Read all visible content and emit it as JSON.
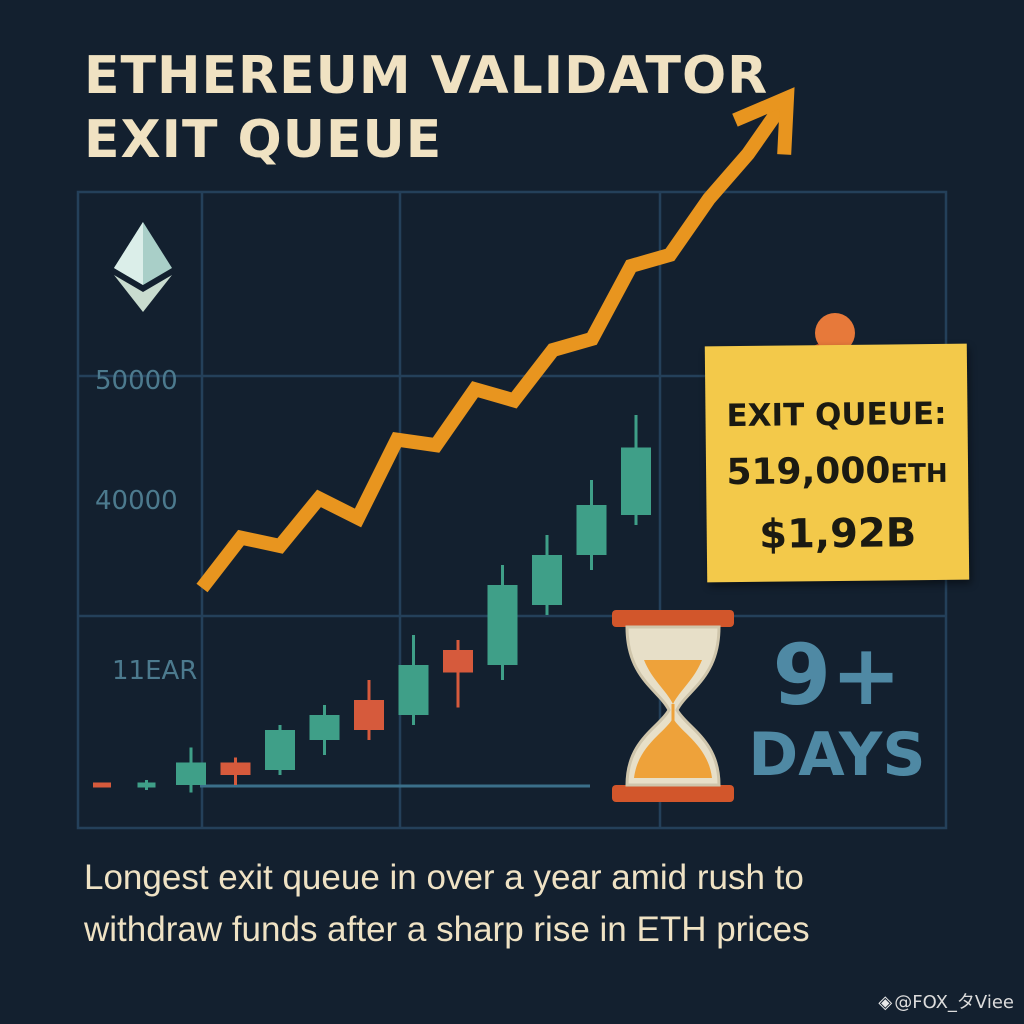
{
  "title_lines": [
    "ETHEREUM VALIDATOR",
    "EXIT QUEUE"
  ],
  "note": {
    "line1": "EXIT QUEUE:",
    "amount": "519,000",
    "unit": "ETH",
    "value": "$1,92B"
  },
  "days": {
    "number": "9+",
    "label": "DAYS"
  },
  "caption_lines": [
    "Longest exit queue in over a year amid rush to",
    "withdraw funds after a sharp rise in ETH prices"
  ],
  "watermark": "@FOX_タViee",
  "colors": {
    "background": "#13202f",
    "grid": "#24405a",
    "trend": "#e8951f",
    "candle_up": "#3f9f88",
    "candle_down": "#d65a3c",
    "note": "#f3c94a",
    "days_text": "#4f89a4"
  },
  "icons": [
    "ethereum-logo-icon",
    "hourglass-icon",
    "pushpin-icon",
    "binance-logo-icon"
  ],
  "chart_data": {
    "type": "line",
    "y_tick_labels": [
      "50000",
      "40000",
      "11EAR"
    ],
    "trend_line": [
      {
        "x": 0,
        "y": 15.0
      },
      {
        "x": 1,
        "y": 33.0
      },
      {
        "x": 2,
        "y": 30.0
      },
      {
        "x": 3,
        "y": 47.0
      },
      {
        "x": 4,
        "y": 40.0
      },
      {
        "x": 5,
        "y": 68.0
      },
      {
        "x": 6,
        "y": 66.0
      },
      {
        "x": 7,
        "y": 86.0
      },
      {
        "x": 8,
        "y": 82.0
      },
      {
        "x": 9,
        "y": 100.0
      },
      {
        "x": 10,
        "y": 104.0
      },
      {
        "x": 11,
        "y": 130.0
      },
      {
        "x": 12,
        "y": 134.0
      },
      {
        "x": 13,
        "y": 154.0
      },
      {
        "x": 14,
        "y": 170.0
      },
      {
        "x": 15,
        "y": 190.0
      }
    ],
    "candles": [
      {
        "x": 0,
        "open": 2.5,
        "close": 3.5,
        "high": 3.5,
        "low": 2.5,
        "dir": "down"
      },
      {
        "x": 1,
        "open": 2.5,
        "close": 3.5,
        "high": 4.0,
        "low": 2.0,
        "dir": "up"
      },
      {
        "x": 2,
        "open": 3.0,
        "close": 7.5,
        "high": 10.5,
        "low": 1.5,
        "dir": "up"
      },
      {
        "x": 3,
        "open": 7.5,
        "close": 5.0,
        "high": 8.5,
        "low": 3.0,
        "dir": "down"
      },
      {
        "x": 4,
        "open": 6.0,
        "close": 14.0,
        "high": 15.0,
        "low": 5.0,
        "dir": "up"
      },
      {
        "x": 5,
        "open": 12.0,
        "close": 17.0,
        "high": 19.0,
        "low": 9.0,
        "dir": "up"
      },
      {
        "x": 6,
        "open": 20.0,
        "close": 14.0,
        "high": 24.0,
        "low": 12.0,
        "dir": "down"
      },
      {
        "x": 7,
        "open": 17.0,
        "close": 27.0,
        "high": 33.0,
        "low": 15.0,
        "dir": "up"
      },
      {
        "x": 8,
        "open": 30.0,
        "close": 25.5,
        "high": 32.0,
        "low": 18.5,
        "dir": "down"
      },
      {
        "x": 9,
        "open": 27.0,
        "close": 43.0,
        "high": 47.0,
        "low": 24.0,
        "dir": "up"
      },
      {
        "x": 10,
        "open": 39.0,
        "close": 49.0,
        "high": 53.0,
        "low": 37.0,
        "dir": "up"
      },
      {
        "x": 11,
        "open": 49.0,
        "close": 59.0,
        "high": 64.0,
        "low": 46.0,
        "dir": "up"
      },
      {
        "x": 12,
        "open": 57.0,
        "close": 70.5,
        "high": 77.0,
        "low": 55.0,
        "dir": "up"
      }
    ]
  }
}
